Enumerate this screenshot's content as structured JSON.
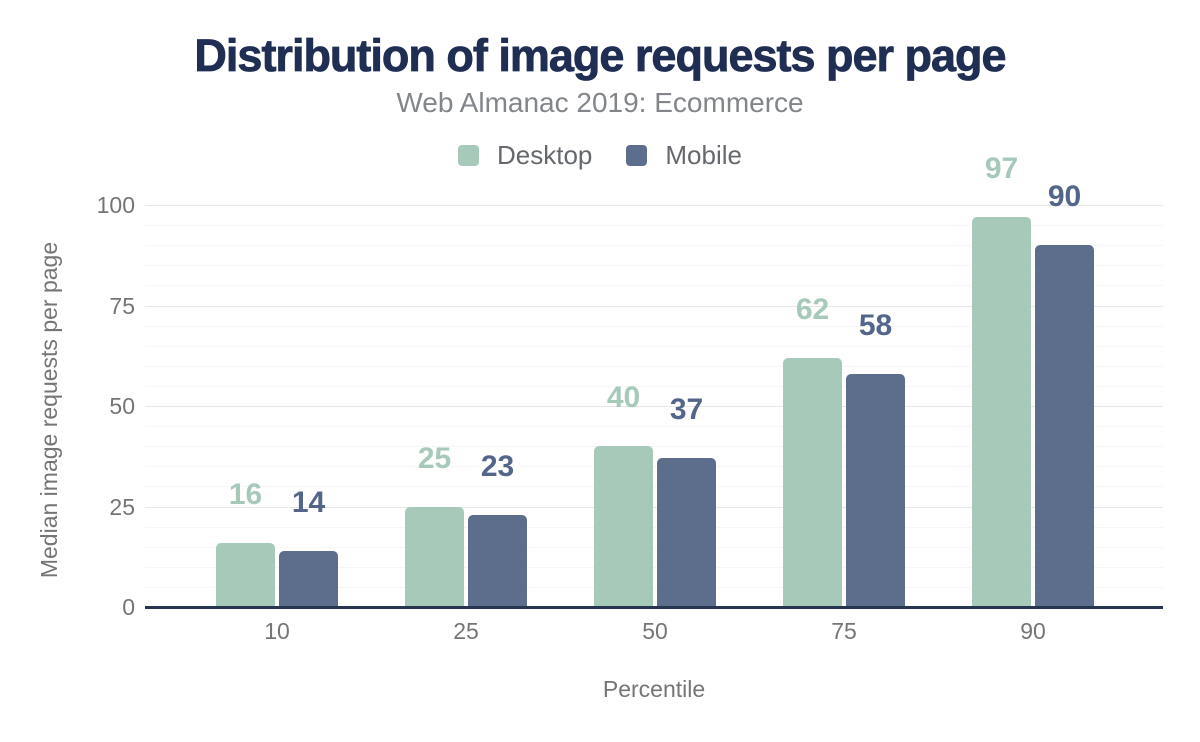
{
  "figure": {
    "title": "Distribution of image requests per page",
    "subtitle": "Web Almanac 2019: Ecommerce"
  },
  "chart_data": {
    "type": "bar",
    "title": "Distribution of image requests per page",
    "subtitle": "Web Almanac 2019: Ecommerce",
    "categories": [
      "10",
      "25",
      "50",
      "75",
      "90"
    ],
    "series": [
      {
        "name": "Desktop",
        "values": [
          16,
          25,
          40,
          62,
          97
        ],
        "color": "#a6c9ba",
        "label_color": "#a6c9ba"
      },
      {
        "name": "Mobile",
        "values": [
          14,
          23,
          37,
          58,
          90
        ],
        "color": "#5d6e8c",
        "label_color": "#54658b"
      }
    ],
    "xlabel": "Percentile",
    "ylabel": "Median image requests per page",
    "ylim": [
      0,
      100
    ],
    "yticks": [
      0,
      25,
      50,
      75,
      100
    ],
    "minor_grid_step": 5,
    "major_grid_step": 25,
    "grid": true,
    "data_labels": true,
    "legend_position": "top",
    "style": {
      "title_color": "#1f2e52",
      "subtitle_color": "#82868b",
      "legend_text_color": "#65696e",
      "tick_color": "#757575",
      "axis_title_color": "#757575",
      "axis_line_color": "#263650",
      "grid_minor_color": "#f6f6f6",
      "grid_major_color": "#e7e7e7",
      "background": "#ffffff"
    }
  }
}
